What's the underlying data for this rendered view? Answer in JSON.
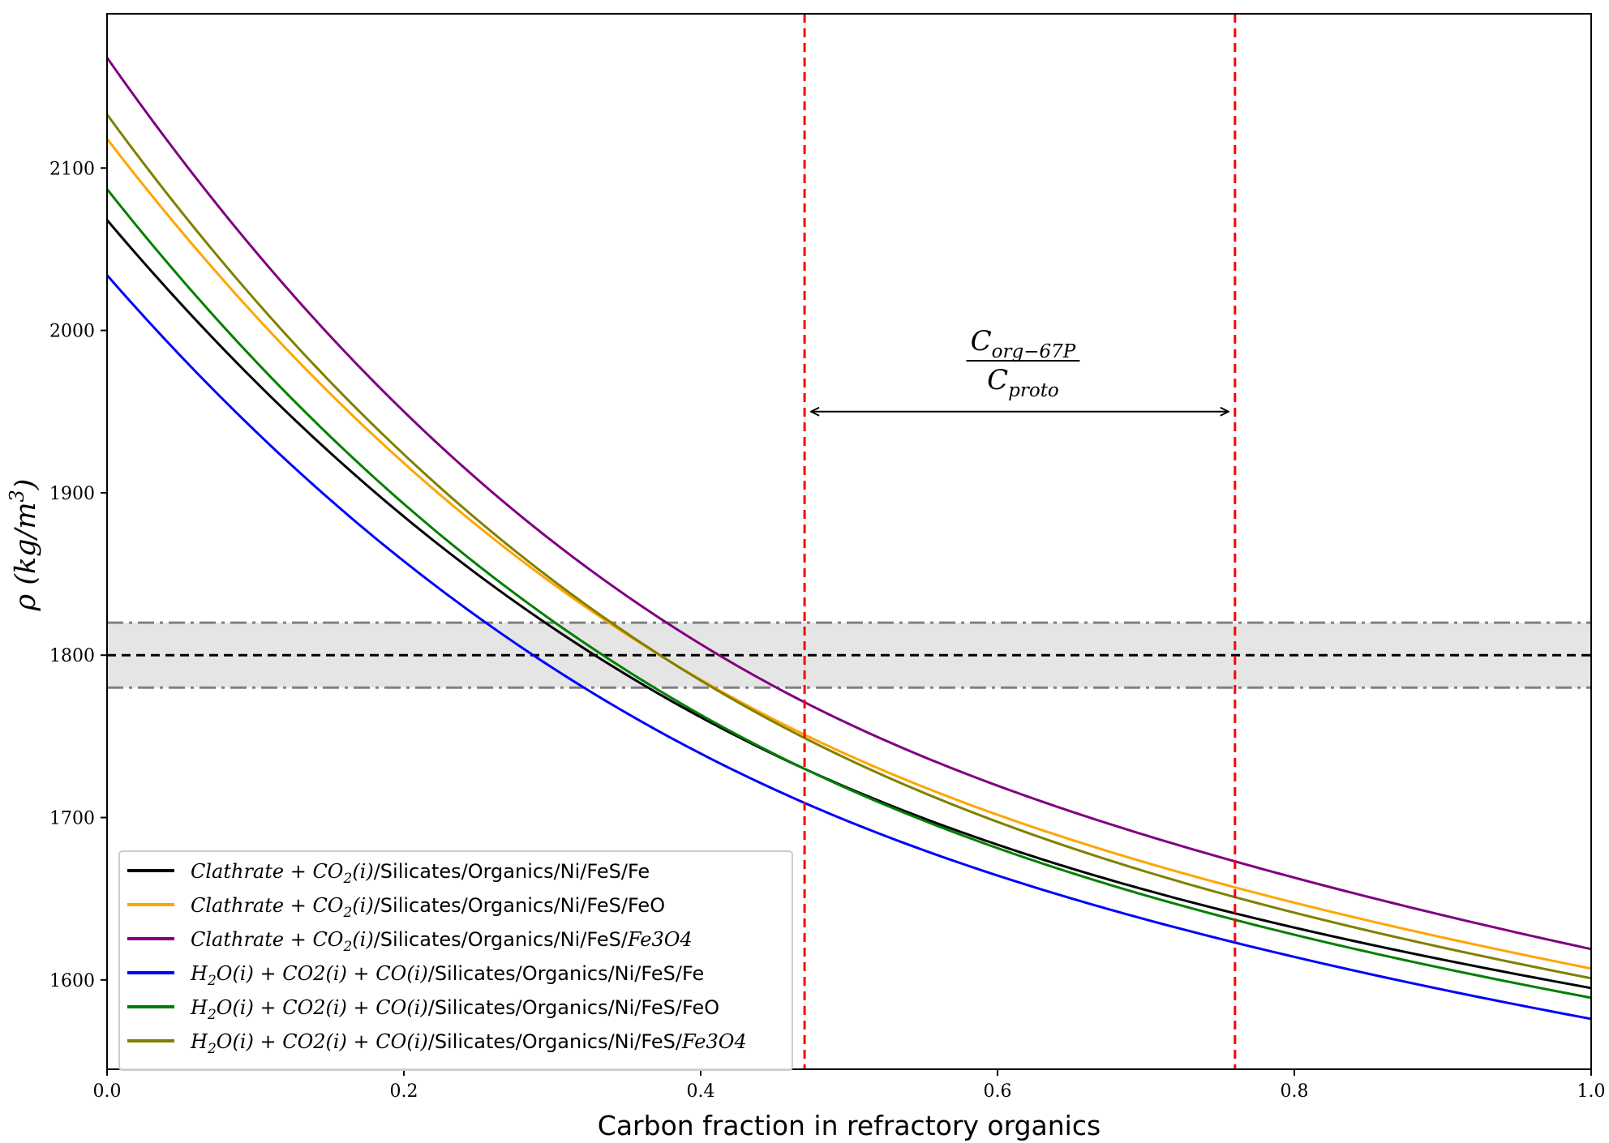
{
  "chart_data": {
    "type": "line",
    "title": "",
    "xlabel": "Carbon fraction in refractory organics",
    "ylabel": "ρ (kg/m³)",
    "ylabel_parts": {
      "rho": "ρ",
      "unit_open": " (kg/m",
      "exponent": "3",
      "unit_close": ")"
    },
    "xlim": [
      0.0,
      1.0
    ],
    "ylim": [
      1545,
      2195
    ],
    "x_ticks": [
      0.0,
      0.2,
      0.4,
      0.6,
      0.8,
      1.0
    ],
    "x_tick_labels": [
      "0.0",
      "0.2",
      "0.4",
      "0.6",
      "0.8",
      "1.0"
    ],
    "y_ticks": [
      1600,
      1700,
      1800,
      1900,
      2000,
      2100
    ],
    "y_tick_labels": [
      "1600",
      "1700",
      "1800",
      "1900",
      "2000",
      "2100"
    ],
    "grid": false,
    "legend_position": "lower-left",
    "x": [
      0.0,
      0.47,
      0.76,
      1.0
    ],
    "series": [
      {
        "name": "Clathrate + CO2(i)/Silicates/Organics/Ni/FeS/Fe",
        "color": "#000000",
        "values": [
          2068,
          1730,
          1641,
          1595
        ]
      },
      {
        "name": "Clathrate + CO2(i)/Silicates/Organics/Ni/FeS/FeO",
        "color": "#ffa500",
        "values": [
          2118,
          1751,
          1657,
          1607
        ]
      },
      {
        "name": "Clathrate + CO2(i)/Silicates/Organics/Ni/FeS/Fe3O4",
        "color": "#800080",
        "values": [
          2168,
          1771,
          1673,
          1619
        ]
      },
      {
        "name": "H2O(i) + CO2(i) + CO(i)/Silicates/Organics/Ni/FeS/Fe",
        "color": "#0000ff",
        "values": [
          2034,
          1709,
          1623,
          1576
        ]
      },
      {
        "name": "H2O(i) + CO2(i) + CO(i)/Silicates/Organics/Ni/FeS/FeO",
        "color": "#008000",
        "values": [
          2087,
          1730,
          1637,
          1589
        ]
      },
      {
        "name": "H2O(i) + CO2(i) + CO(i)/Silicates/Organics/Ni/FeS/Fe3O4",
        "color": "#808000",
        "values": [
          2133,
          1749,
          1651,
          1601
        ]
      }
    ],
    "reference_density": {
      "value": 1800,
      "lower": 1780,
      "upper": 1820,
      "band_color": "#e5e5e5",
      "line_color": "#000000",
      "bound_color": "#808080"
    },
    "vertical_markers": {
      "values": [
        0.47,
        0.76
      ],
      "color": "#ff0000"
    },
    "annotation": {
      "numerator": {
        "base": "C",
        "subscript": "org−67P"
      },
      "denominator": {
        "base": "C",
        "subscript": "proto"
      },
      "arrow_from": 0.47,
      "arrow_to": 0.76,
      "arrow_y": 1950
    },
    "legend": [
      {
        "color": "#000000",
        "prefix": "Clathrate + CO",
        "prefix_sub": "2",
        "prefix_tail": "(i)",
        "suffix": "/Silicates/Organics/Ni/FeS/Fe",
        "formula": ""
      },
      {
        "color": "#ffa500",
        "prefix": "Clathrate + CO",
        "prefix_sub": "2",
        "prefix_tail": "(i)",
        "suffix": "/Silicates/Organics/Ni/FeS/FeO",
        "formula": ""
      },
      {
        "color": "#800080",
        "prefix": "Clathrate + CO",
        "prefix_sub": "2",
        "prefix_tail": "(i)",
        "suffix": "/Silicates/Organics/Ni/FeS/",
        "formula": "Fe3O4"
      },
      {
        "color": "#0000ff",
        "prefix": "H",
        "prefix_sub": "2",
        "prefix_tail": "O(i) + CO2(i) + CO(i)",
        "suffix": "/Silicates/Organics/Ni/FeS/Fe",
        "formula": ""
      },
      {
        "color": "#008000",
        "prefix": "H",
        "prefix_sub": "2",
        "prefix_tail": "O(i) + CO2(i) + CO(i)",
        "suffix": "/Silicates/Organics/Ni/FeS/FeO",
        "formula": ""
      },
      {
        "color": "#808000",
        "prefix": "H",
        "prefix_sub": "2",
        "prefix_tail": "O(i) + CO2(i) + CO(i)",
        "suffix": "/Silicates/Organics/Ni/FeS/",
        "formula": "Fe3O4"
      }
    ]
  }
}
